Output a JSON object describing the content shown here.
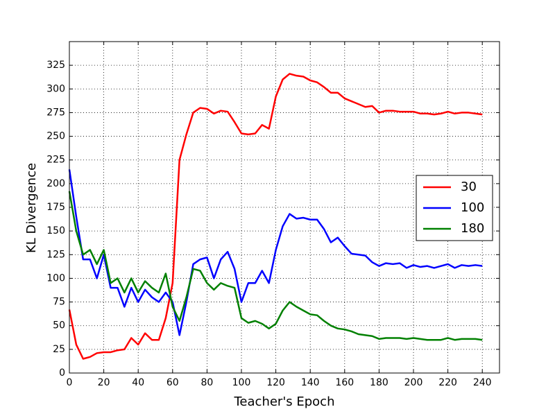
{
  "chart_data": {
    "type": "line",
    "x_label": "Teacher's Epoch",
    "y_label": "KL Divergence",
    "x": [
      0,
      4,
      8,
      12,
      16,
      20,
      24,
      28,
      32,
      36,
      40,
      44,
      48,
      52,
      56,
      60,
      64,
      68,
      72,
      76,
      80,
      84,
      88,
      92,
      96,
      100,
      104,
      108,
      112,
      116,
      120,
      124,
      128,
      132,
      136,
      140,
      144,
      148,
      152,
      156,
      160,
      164,
      168,
      172,
      176,
      180,
      184,
      188,
      192,
      196,
      200,
      204,
      208,
      212,
      216,
      220,
      224,
      228,
      232,
      236,
      240
    ],
    "series": [
      {
        "name": "30",
        "color": "#ff0000",
        "values": [
          67,
          30,
          15,
          17,
          21,
          22,
          22,
          24,
          25,
          37,
          30,
          42,
          35,
          35,
          58,
          95,
          225,
          252,
          275,
          280,
          279,
          274,
          277,
          276,
          265,
          253,
          252,
          253,
          262,
          258,
          292,
          310,
          316,
          314,
          313,
          309,
          307,
          302,
          296,
          296,
          290,
          287,
          284,
          281,
          282,
          275,
          277,
          277,
          276,
          276,
          276,
          274,
          274,
          273,
          274,
          276,
          274,
          275,
          275,
          274,
          273
        ]
      },
      {
        "name": "100",
        "color": "#0000ff",
        "values": [
          215,
          165,
          120,
          120,
          100,
          125,
          90,
          90,
          70,
          90,
          75,
          88,
          80,
          75,
          85,
          75,
          40,
          75,
          115,
          120,
          122,
          100,
          120,
          128,
          110,
          75,
          95,
          95,
          108,
          95,
          130,
          155,
          168,
          163,
          164,
          162,
          162,
          152,
          138,
          143,
          134,
          126,
          125,
          124,
          117,
          113,
          116,
          115,
          116,
          111,
          114,
          112,
          113,
          111,
          113,
          115,
          111,
          114,
          113,
          114,
          113
        ]
      },
      {
        "name": "180",
        "color": "#008000",
        "values": [
          192,
          150,
          125,
          130,
          115,
          130,
          95,
          100,
          85,
          100,
          85,
          97,
          90,
          85,
          105,
          70,
          55,
          80,
          110,
          108,
          95,
          88,
          95,
          92,
          90,
          58,
          53,
          55,
          52,
          47,
          52,
          66,
          75,
          70,
          66,
          62,
          61,
          55,
          50,
          47,
          46,
          44,
          41,
          40,
          39,
          36,
          37,
          37,
          37,
          36,
          37,
          36,
          35,
          35,
          35,
          37,
          35,
          36,
          36,
          36,
          35
        ]
      }
    ],
    "xlim": [
      0,
      250
    ],
    "xticks": [
      0,
      20,
      40,
      60,
      80,
      100,
      120,
      140,
      160,
      180,
      200,
      220,
      240
    ],
    "ylim": [
      0,
      350
    ],
    "yticks": [
      0,
      25,
      50,
      75,
      100,
      125,
      150,
      175,
      200,
      225,
      250,
      275,
      300,
      325
    ],
    "grid": true,
    "legend": "right"
  }
}
